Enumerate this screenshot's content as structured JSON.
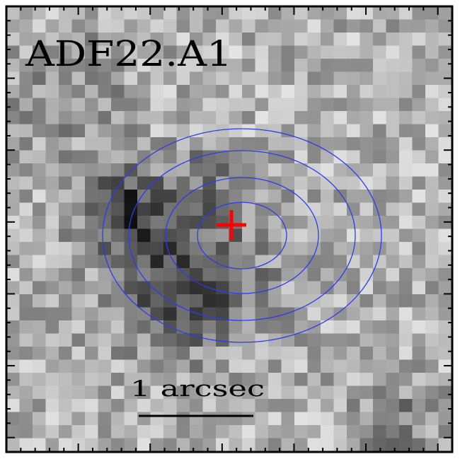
{
  "image": {
    "title": "ADF22.A1",
    "scale_label": "1 arcsec",
    "contour_color": "#2a3cf0",
    "marker_color": "#ff0000",
    "frame_color": "#000000",
    "contour_count": 4,
    "marker": "plus-icon"
  }
}
